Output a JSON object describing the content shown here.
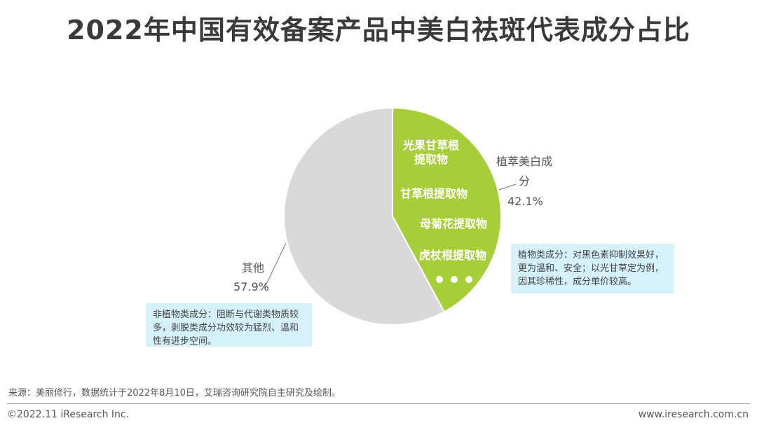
{
  "title": "2022年中国有效备案产品中美白祛斑代表成分占比",
  "chart_data": {
    "type": "pie",
    "title": "2022年中国有效备案产品中美白祛斑代表成分占比",
    "slices": [
      {
        "label": "植萃美白成分",
        "value": 42.1,
        "value_label": "42.1%",
        "color": "#a6ce39"
      },
      {
        "label": "其他",
        "value": 57.9,
        "value_label": "57.9%",
        "color": "#d9d9d9"
      }
    ],
    "inner_labels": [
      "光果甘草根提取物",
      "甘草根提取物",
      "母菊花提取物",
      "虎杖根提取物"
    ]
  },
  "callouts": {
    "plant_label_line1": "植萃美白成",
    "plant_label_line2": "分",
    "plant_value": "42.1%",
    "other_label": "其他",
    "other_value": "57.9%"
  },
  "notes": {
    "left": "非植物类成分：阻断与代谢类物质较多，剥脱类成分功效较为猛烈、温和性有进步空间。",
    "right": "植物类成分：对黑色素抑制效果好，更为温和、安全；以光甘草定为例，因其珍稀性，成分单价较高。"
  },
  "source": "来源：美丽修行，数据统计于2022年8月10日，艾瑞咨询研究院自主研究及绘制。",
  "footer": {
    "copyright": "©2022.11 iResearch Inc.",
    "website": "www.iresearch.com.cn"
  }
}
